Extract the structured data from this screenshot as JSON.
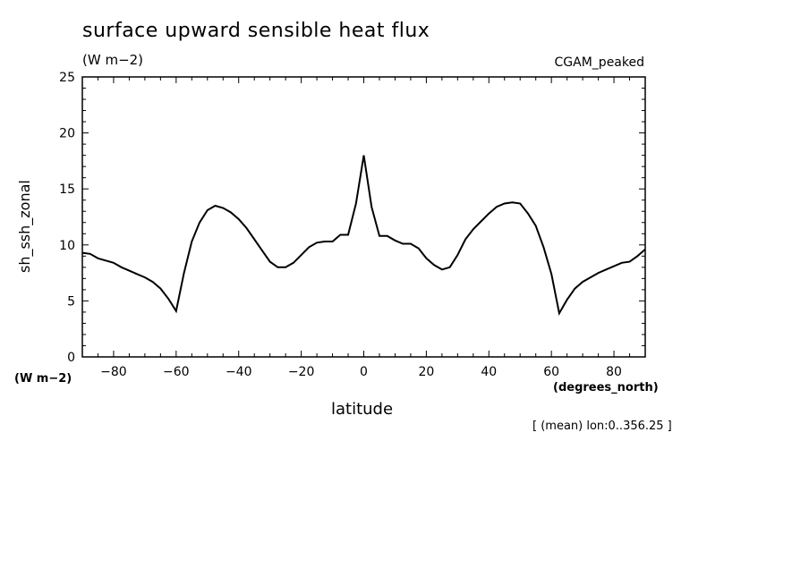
{
  "title": "surface upward sensible heat flux",
  "units": "(W m−2)",
  "run_label": "CGAM_peaked",
  "ylabel": "sh_ssh_zonal",
  "y_axis_units": "(W m−2)",
  "x_axis_units": "(degrees_north)",
  "xlabel": "latitude",
  "note": "[ (mean) lon:0..356.25 ]",
  "chart_data": {
    "type": "line",
    "title": "surface upward sensible heat flux",
    "xlabel": "latitude",
    "ylabel": "sh_ssh_zonal",
    "xlim": [
      -90,
      90
    ],
    "ylim": [
      0,
      25
    ],
    "xticks": [
      -80,
      -60,
      -40,
      -20,
      0,
      20,
      40,
      60,
      80
    ],
    "yticks": [
      0,
      5,
      10,
      15,
      20,
      25
    ],
    "grid": false,
    "series": [
      {
        "x": [
          -90,
          -87.5,
          -85,
          -82.5,
          -80,
          -77.5,
          -75,
          -72.5,
          -70,
          -67.5,
          -65,
          -62.5,
          -60,
          -57.5,
          -55,
          -52.5,
          -50,
          -47.5,
          -45,
          -42.5,
          -40,
          -37.5,
          -35,
          -32.5,
          -30,
          -27.5,
          -25,
          -22.5,
          -20,
          -17.5,
          -15,
          -12.5,
          -10,
          -7.5,
          -5,
          -2.5,
          0,
          2.5,
          5,
          7.5,
          10,
          12.5,
          15,
          17.5,
          20,
          22.5,
          25,
          27.5,
          30,
          32.5,
          35,
          37.5,
          40,
          42.5,
          45,
          47.5,
          50,
          52.5,
          55,
          57.5,
          60,
          62.5,
          65,
          67.5,
          70,
          72.5,
          75,
          77.5,
          80,
          82.5,
          85,
          87.5,
          90
        ],
        "values": [
          9.3,
          9.2,
          8.8,
          8.6,
          8.4,
          8.0,
          7.7,
          7.4,
          7.1,
          6.7,
          6.1,
          5.2,
          4.1,
          7.5,
          10.3,
          12.0,
          13.1,
          13.5,
          13.3,
          12.9,
          12.3,
          11.5,
          10.5,
          9.5,
          8.5,
          8.0,
          8.0,
          8.4,
          9.1,
          9.8,
          10.2,
          10.3,
          10.3,
          10.9,
          10.9,
          13.7,
          18.0,
          13.4,
          10.8,
          10.8,
          10.4,
          10.1,
          10.1,
          9.7,
          8.8,
          8.2,
          7.8,
          8.0,
          9.1,
          10.5,
          11.4,
          12.1,
          12.8,
          13.4,
          13.7,
          13.8,
          13.7,
          12.8,
          11.7,
          9.8,
          7.4,
          3.9,
          5.1,
          6.1,
          6.7,
          7.1,
          7.5,
          7.8,
          8.1,
          8.4,
          8.5,
          9.0,
          9.6
        ]
      }
    ]
  }
}
